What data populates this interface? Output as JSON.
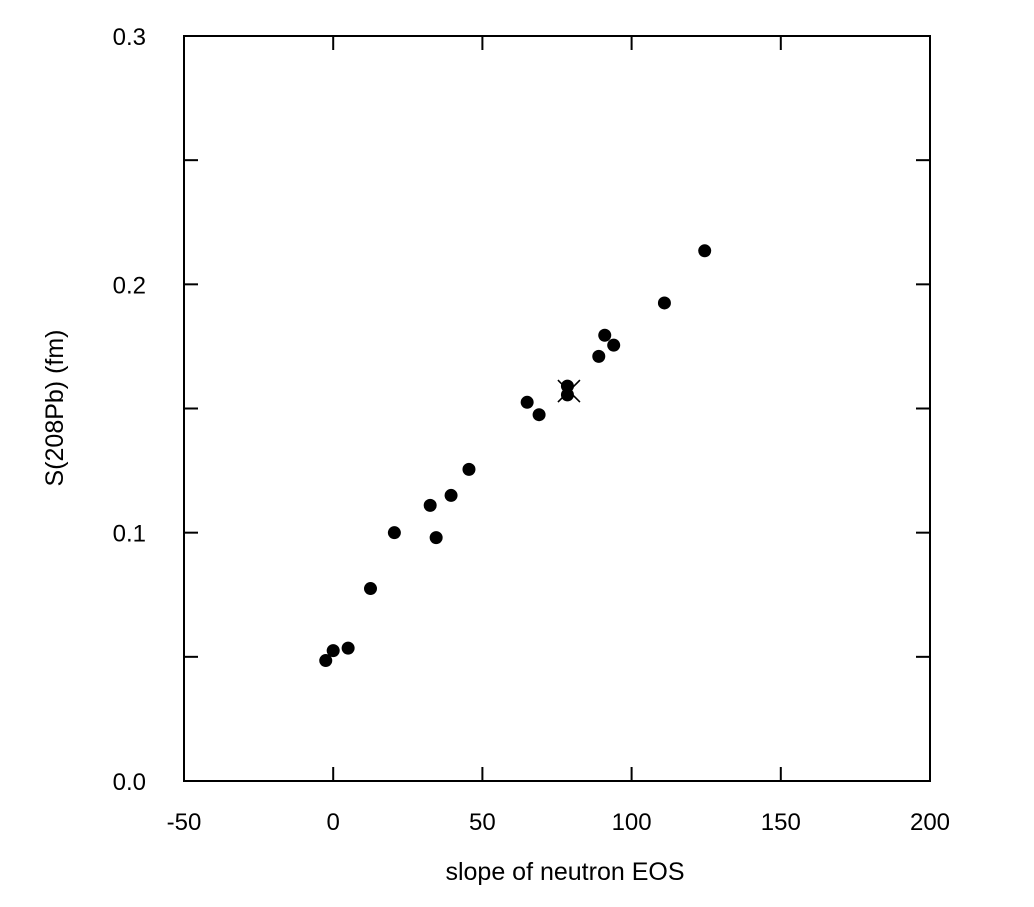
{
  "chart_data": {
    "type": "scatter",
    "title": "",
    "xlabel": "slope of neutron EOS",
    "ylabel": "S(208Pb) (fm)",
    "xlim": [
      -50,
      200
    ],
    "ylim": [
      0.0,
      0.3
    ],
    "x_ticks": [
      -50,
      0,
      50,
      100,
      150,
      200
    ],
    "x_tick_labels": [
      "-50",
      "0",
      "50",
      "100",
      "150",
      "200"
    ],
    "y_ticks": [
      0.0,
      0.1,
      0.2,
      0.3
    ],
    "y_tick_labels": [
      "0.0",
      "0.1",
      "0.2",
      "0.3"
    ],
    "y_minor_ticks": [
      0.05,
      0.15,
      0.25
    ],
    "grid": false,
    "series": [
      {
        "marker": "filled-circle",
        "color": "#000000",
        "points": [
          {
            "x": -2.5,
            "y": 0.0485
          },
          {
            "x": 0.0,
            "y": 0.0525
          },
          {
            "x": 5.0,
            "y": 0.0535
          },
          {
            "x": 12.5,
            "y": 0.0775
          },
          {
            "x": 20.5,
            "y": 0.1
          },
          {
            "x": 32.5,
            "y": 0.111
          },
          {
            "x": 34.5,
            "y": 0.098
          },
          {
            "x": 39.5,
            "y": 0.115
          },
          {
            "x": 45.5,
            "y": 0.1255
          },
          {
            "x": 65.0,
            "y": 0.1525
          },
          {
            "x": 69.0,
            "y": 0.1475
          },
          {
            "x": 78.5,
            "y": 0.159
          },
          {
            "x": 78.5,
            "y": 0.1555
          },
          {
            "x": 89.0,
            "y": 0.171
          },
          {
            "x": 91.0,
            "y": 0.1795
          },
          {
            "x": 94.0,
            "y": 0.1755
          },
          {
            "x": 111.0,
            "y": 0.1925
          },
          {
            "x": 124.5,
            "y": 0.2135
          }
        ]
      },
      {
        "marker": "x-cross",
        "color": "#000000",
        "points": [
          {
            "x": 79.0,
            "y": 0.157
          }
        ]
      }
    ]
  }
}
